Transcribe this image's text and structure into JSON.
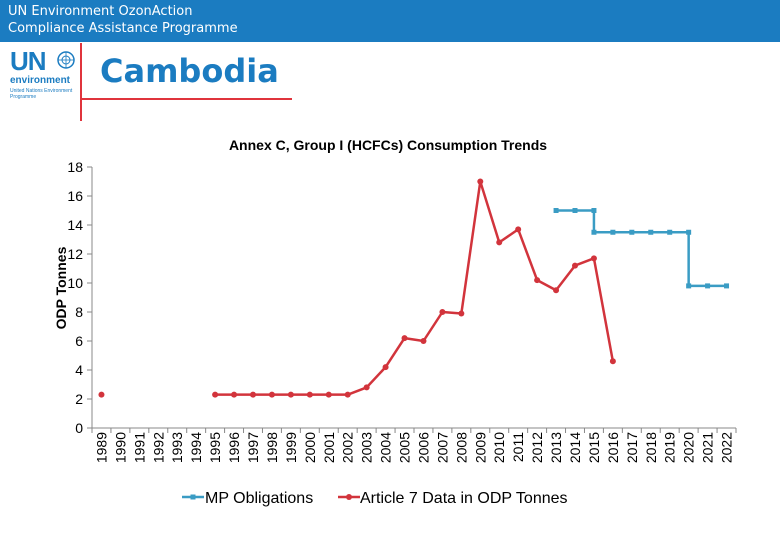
{
  "header": {
    "line1": "UN Environment OzonAction",
    "line2": "Compliance Assistance Programme"
  },
  "logo": {
    "text": "UN",
    "subtext": "environment",
    "caption": "United Nations Environment Programme",
    "icon": "un-emblem-icon"
  },
  "page_title": "Cambodia",
  "colors": {
    "header_bg": "#1b7cc1",
    "title": "#1b7cc1",
    "accent_red": "#e0343c",
    "mp_series": "#3a9cc4",
    "art7_series": "#d2343c"
  },
  "chart_data": {
    "type": "line",
    "title": "Annex C, Group I (HCFCs) Consumption Trends",
    "xlabel": "",
    "ylabel": "ODP Tonnes",
    "ylim": [
      0,
      18
    ],
    "yticks": [
      0,
      2,
      4,
      6,
      8,
      10,
      12,
      14,
      16,
      18
    ],
    "grid": false,
    "legend": "bottom",
    "x": [
      "1989",
      "1990",
      "1991",
      "1992",
      "1993",
      "1994",
      "1995",
      "1996",
      "1997",
      "1998",
      "1999",
      "2000",
      "2001",
      "2002",
      "2003",
      "2004",
      "2005",
      "2006",
      "2007",
      "2008",
      "2009",
      "2010",
      "2011",
      "2012",
      "2013",
      "2014",
      "2015",
      "2016",
      "2017",
      "2018",
      "2019",
      "2020",
      "2021",
      "2022"
    ],
    "series": [
      {
        "name": "MP Obligations",
        "color": "#3a9cc4",
        "step": true,
        "points": [
          [
            "2013",
            15.0
          ],
          [
            "2014",
            15.0
          ],
          [
            "2015",
            15.0
          ],
          [
            "2015",
            13.5
          ],
          [
            "2016",
            13.5
          ],
          [
            "2017",
            13.5
          ],
          [
            "2018",
            13.5
          ],
          [
            "2019",
            13.5
          ],
          [
            "2020",
            13.5
          ],
          [
            "2020",
            9.8
          ],
          [
            "2021",
            9.8
          ],
          [
            "2022",
            9.8
          ]
        ]
      },
      {
        "name": "Article 7 Data in ODP Tonnes",
        "color": "#d2343c",
        "step": false,
        "points": [
          [
            "1989",
            2.3
          ],
          [
            "1995",
            2.3
          ],
          [
            "1996",
            2.3
          ],
          [
            "1997",
            2.3
          ],
          [
            "1998",
            2.3
          ],
          [
            "1999",
            2.3
          ],
          [
            "2000",
            2.3
          ],
          [
            "2001",
            2.3
          ],
          [
            "2002",
            2.3
          ],
          [
            "2003",
            2.8
          ],
          [
            "2004",
            4.2
          ],
          [
            "2005",
            6.2
          ],
          [
            "2006",
            6.0
          ],
          [
            "2007",
            8.0
          ],
          [
            "2008",
            7.9
          ],
          [
            "2009",
            17.0
          ],
          [
            "2010",
            12.8
          ],
          [
            "2011",
            13.7
          ],
          [
            "2012",
            10.2
          ],
          [
            "2013",
            9.5
          ],
          [
            "2014",
            11.2
          ],
          [
            "2015",
            11.7
          ],
          [
            "2016",
            4.6
          ]
        ]
      }
    ]
  }
}
